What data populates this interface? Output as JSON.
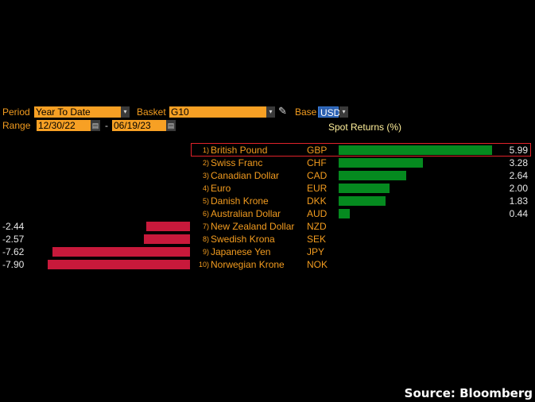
{
  "controls": {
    "period_label": "Period",
    "period_value": "Year To Date",
    "basket_label": "Basket",
    "basket_value": "G10",
    "base_label": "Base",
    "base_value": "USD",
    "range_label": "Range",
    "range_start": "12/30/22",
    "range_sep": "-",
    "range_end": "06/19/23",
    "dropdown_glyph": "▾",
    "calendar_glyph": "▤",
    "pencil_glyph": "✎"
  },
  "column_header": "Spot Returns (%)",
  "rows": [
    {
      "rank": "1)",
      "name": "British Pound",
      "code": "GBP",
      "value": 5.99,
      "label": "5.99",
      "highlighted": true
    },
    {
      "rank": "2)",
      "name": "Swiss Franc",
      "code": "CHF",
      "value": 3.28,
      "label": "3.28"
    },
    {
      "rank": "3)",
      "name": "Canadian Dollar",
      "code": "CAD",
      "value": 2.64,
      "label": "2.64"
    },
    {
      "rank": "4)",
      "name": "Euro",
      "code": "EUR",
      "value": 2.0,
      "label": "2.00"
    },
    {
      "rank": "5)",
      "name": "Danish Krone",
      "code": "DKK",
      "value": 1.83,
      "label": "1.83"
    },
    {
      "rank": "6)",
      "name": "Australian Dollar",
      "code": "AUD",
      "value": 0.44,
      "label": "0.44"
    },
    {
      "rank": "7)",
      "name": "New Zealand Dollar",
      "code": "NZD",
      "value": -2.44,
      "label": "-2.44"
    },
    {
      "rank": "8)",
      "name": "Swedish Krona",
      "code": "SEK",
      "value": -2.57,
      "label": "-2.57"
    },
    {
      "rank": "9)",
      "name": "Japanese Yen",
      "code": "JPY",
      "value": -7.62,
      "label": "-7.62"
    },
    {
      "rank": "10)",
      "name": "Norwegian Krone",
      "code": "NOK",
      "value": -7.9,
      "label": "-7.90"
    }
  ],
  "colors": {
    "positive": "#058a1f",
    "negative": "#c8193b",
    "accent": "#f7a024",
    "highlight": "#e0222a"
  },
  "source": "Source: Bloomberg"
}
